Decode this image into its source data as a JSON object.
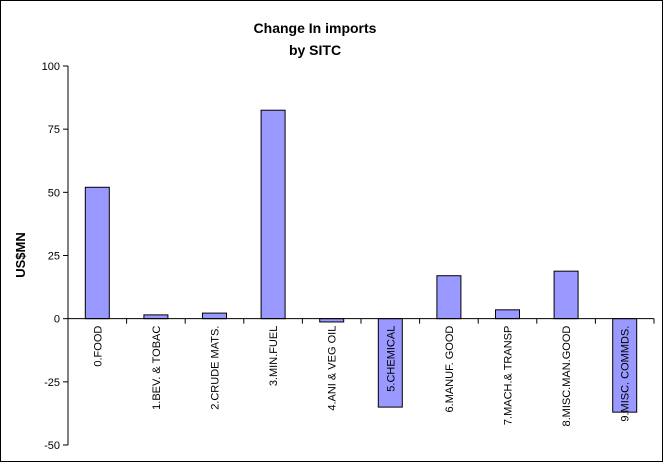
{
  "chart_data": {
    "type": "bar",
    "title": "Change In imports",
    "subtitle": "by SITC",
    "ylabel": "US$MN",
    "xlabel": "",
    "ylim": [
      -50,
      100
    ],
    "yticks": [
      -50,
      -25,
      0,
      25,
      50,
      75,
      100
    ],
    "grid": false,
    "categories": [
      "0.FOOD",
      "1.BEV. & TOBAC",
      "2.CRUDE MATS.",
      "3.MIN.FUEL",
      "4.ANI & VEG OIL",
      "5.CHEMICAL",
      "6.MANUF. GOOD",
      "7.MACH.& TRANSP",
      "8.MISC.MAN.GOOD",
      "9.MISC. COMMDS."
    ],
    "values": [
      52,
      1.5,
      2.2,
      82.5,
      -1.3,
      -35,
      17,
      3.5,
      18.8,
      -37
    ],
    "colors": {
      "bar_fill": "#9999ff",
      "bar_stroke": "#000000",
      "axis": "#000000",
      "background": "#ffffff"
    }
  }
}
